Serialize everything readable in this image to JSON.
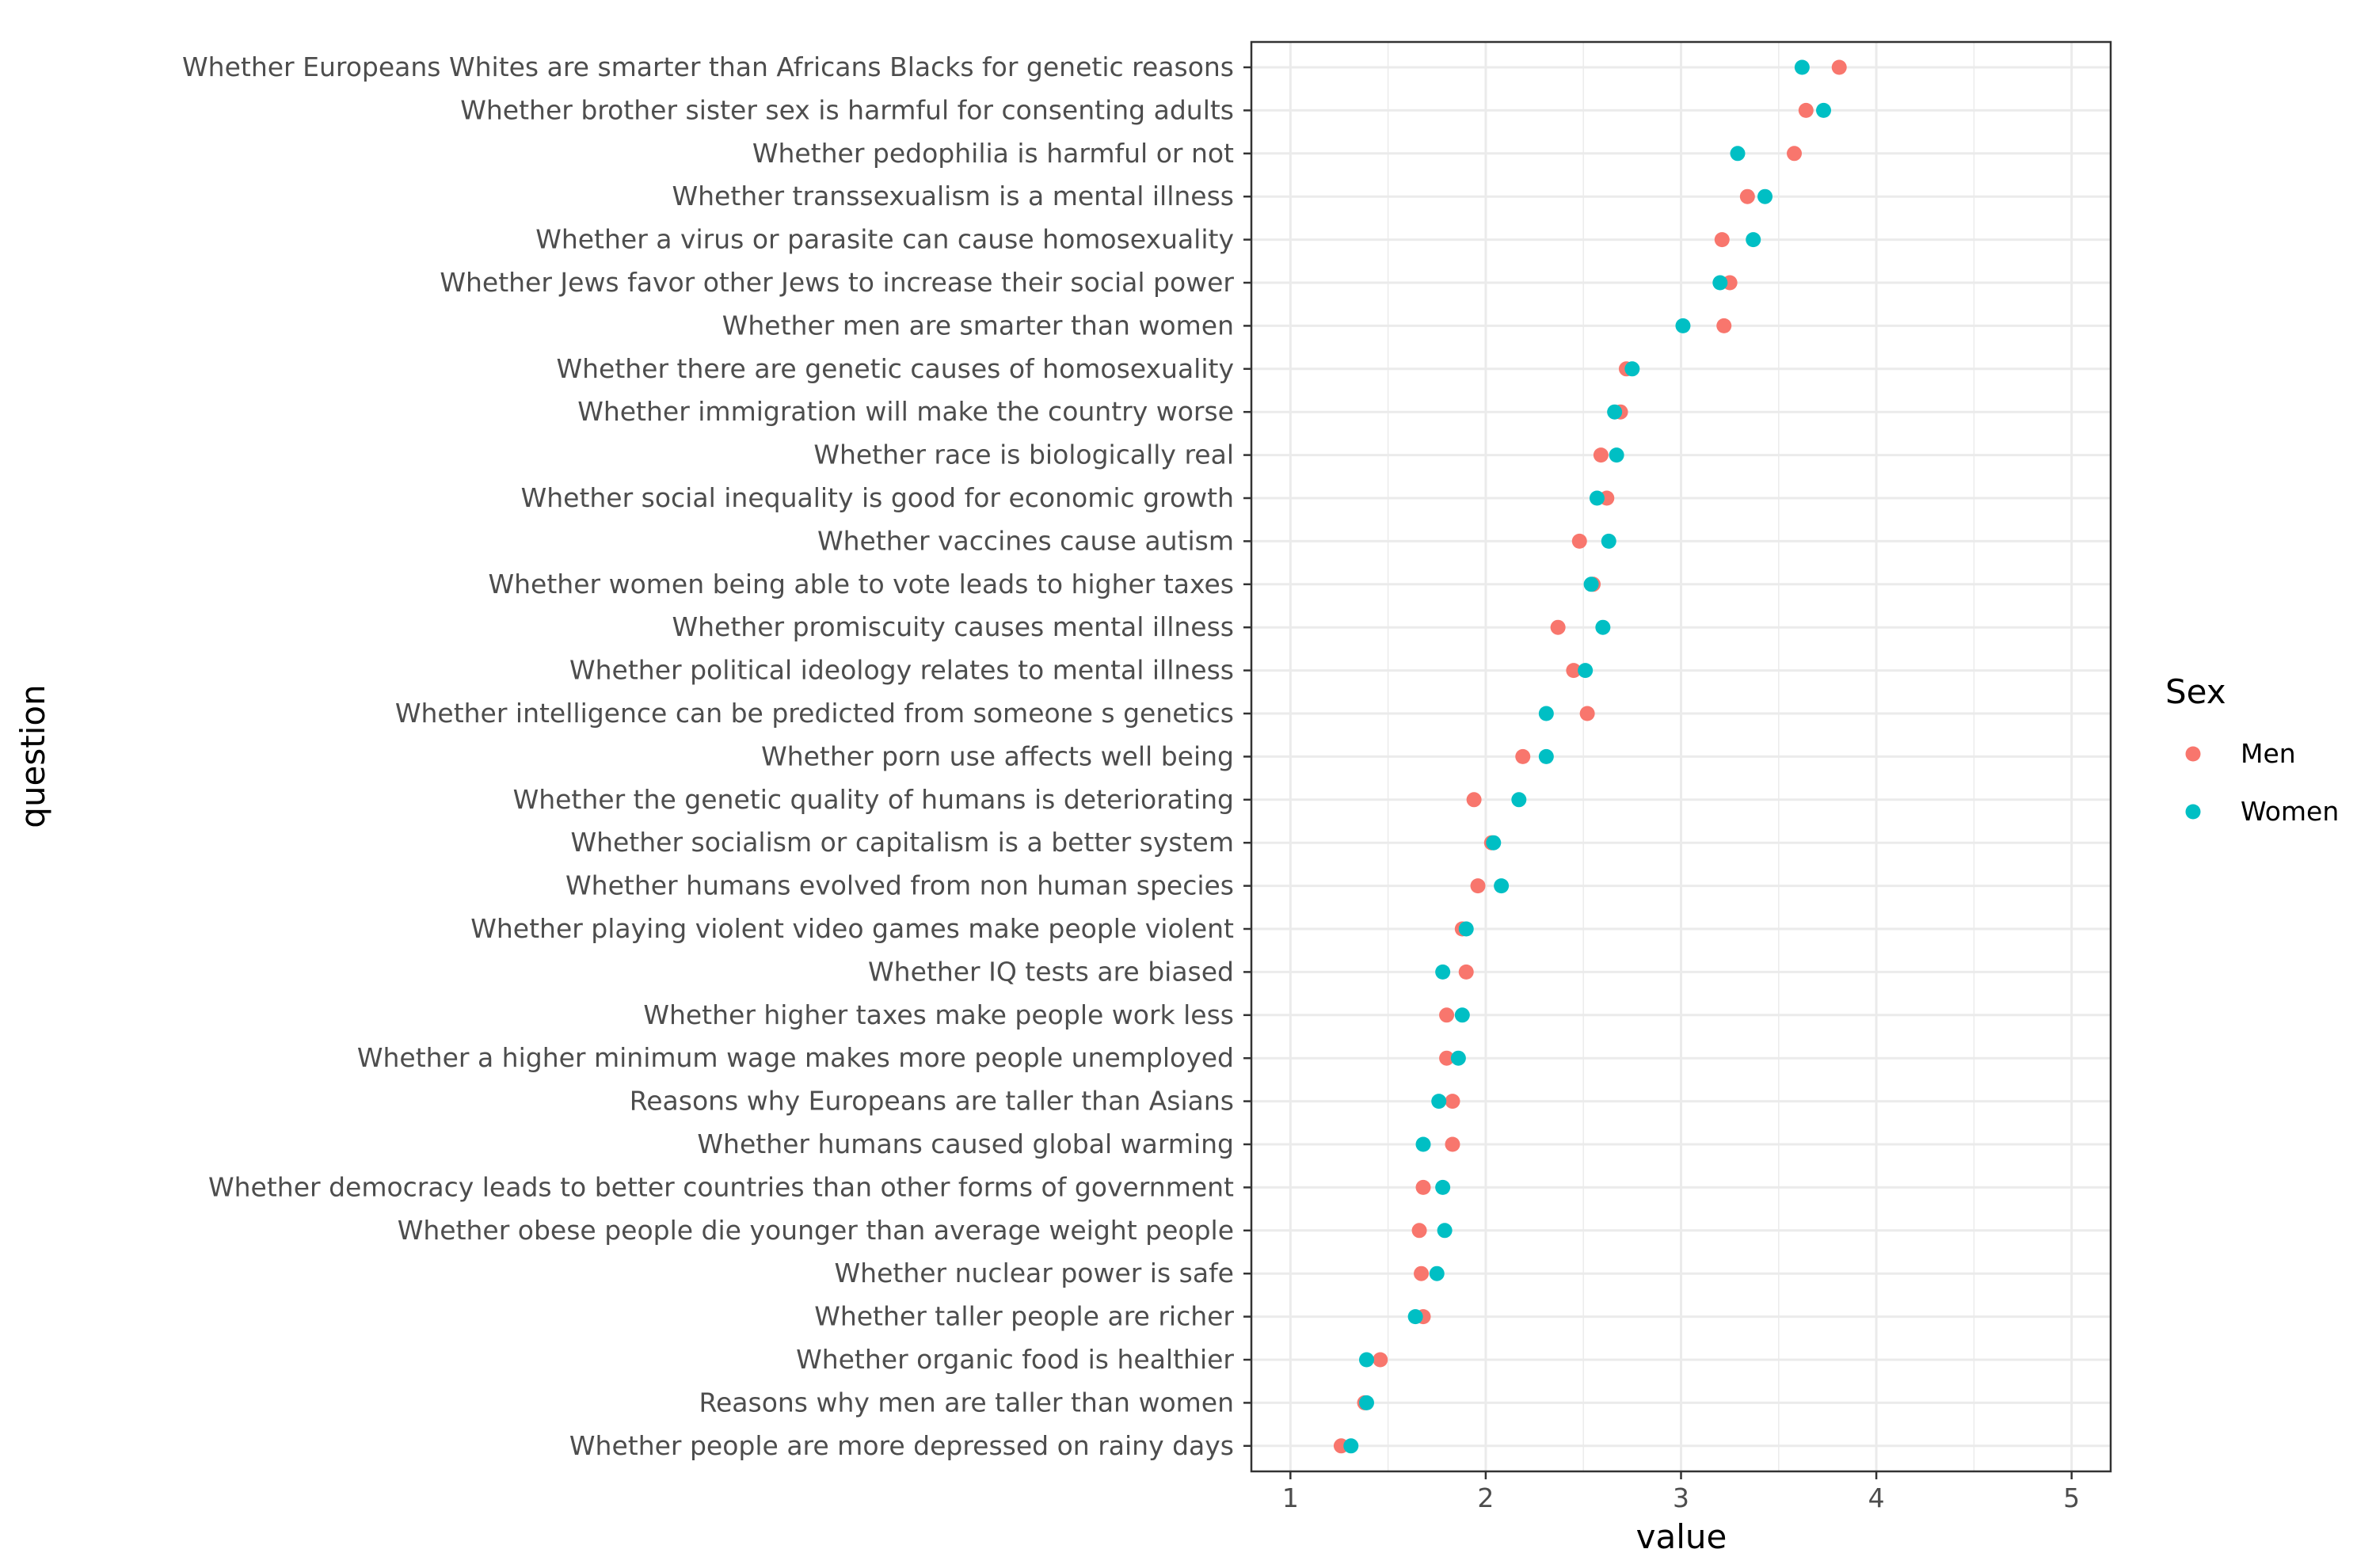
{
  "chart_data": {
    "type": "scatter",
    "xlabel": "value",
    "ylabel": "question",
    "xlim": [
      0.8,
      5.2
    ],
    "xticks": [
      "1",
      "2",
      "3",
      "4",
      "5"
    ],
    "grid": true,
    "legend": {
      "title": "Sex",
      "position": "right"
    },
    "categories": [
      "Whether Europeans Whites are smarter than Africans Blacks for genetic reasons",
      "Whether brother sister sex is harmful for consenting adults",
      "Whether pedophilia is harmful or not",
      "Whether transsexualism is a mental illness",
      "Whether a virus or parasite can cause homosexuality",
      "Whether Jews favor other Jews to increase their social power",
      "Whether men are smarter than women",
      "Whether there are genetic causes of homosexuality",
      "Whether immigration will make the country worse",
      "Whether race is biologically real",
      "Whether social inequality is good for economic growth",
      "Whether vaccines cause autism",
      "Whether women being able to vote leads to higher taxes",
      "Whether promiscuity causes mental illness",
      "Whether political ideology relates to mental illness",
      "Whether intelligence can be predicted from someone s genetics",
      "Whether porn use affects well being",
      "Whether the genetic quality of humans is deteriorating",
      "Whether socialism or capitalism is a better system",
      "Whether humans evolved from non human species",
      "Whether playing violent video games make people violent",
      "Whether IQ tests are biased",
      "Whether higher taxes make people work less",
      "Whether a higher minimum wage makes more people unemployed",
      "Reasons why Europeans are taller than Asians",
      "Whether humans caused global warming",
      "Whether democracy leads to better countries than other forms of government",
      "Whether obese people die younger than average weight people",
      "Whether nuclear power is safe",
      "Whether taller people are richer",
      "Whether organic food is healthier",
      "Reasons why men are taller than women",
      "Whether people are more depressed on rainy days"
    ],
    "series": [
      {
        "name": "Men",
        "color": "#F8766D",
        "values": [
          3.81,
          3.64,
          3.58,
          3.34,
          3.21,
          3.25,
          3.22,
          2.72,
          2.69,
          2.59,
          2.62,
          2.48,
          2.55,
          2.37,
          2.45,
          2.52,
          2.19,
          1.94,
          2.03,
          1.96,
          1.88,
          1.9,
          1.8,
          1.8,
          1.83,
          1.83,
          1.68,
          1.66,
          1.67,
          1.68,
          1.46,
          1.38,
          1.26
        ]
      },
      {
        "name": "Women",
        "color": "#00BFC4",
        "values": [
          3.62,
          3.73,
          3.29,
          3.43,
          3.37,
          3.2,
          3.01,
          2.75,
          2.66,
          2.67,
          2.57,
          2.63,
          2.54,
          2.6,
          2.51,
          2.31,
          2.31,
          2.17,
          2.04,
          2.08,
          1.9,
          1.78,
          1.88,
          1.86,
          1.76,
          1.68,
          1.78,
          1.79,
          1.75,
          1.64,
          1.39,
          1.39,
          1.31
        ]
      }
    ]
  }
}
